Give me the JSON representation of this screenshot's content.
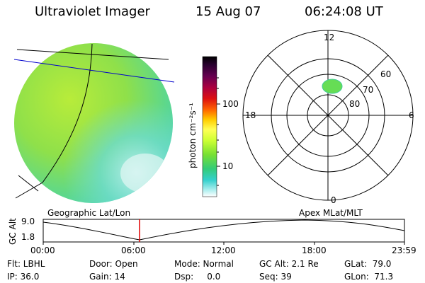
{
  "header": {
    "instrument": "Ultraviolet Imager",
    "date": "15 Aug 07",
    "time": "06:24:08 UT"
  },
  "colorbar": {
    "unit_label": "photon cm⁻²s⁻¹",
    "ticks": [
      "100",
      "10"
    ],
    "colors": [
      "#000000",
      "#330033",
      "#66004c",
      "#990033",
      "#cc0000",
      "#ff3300",
      "#ff8800",
      "#ffcc00",
      "#ffff66",
      "#ccff33",
      "#99ee22",
      "#44dd44",
      "#33cc99",
      "#33cccc",
      "#99eeee",
      "#ffffff"
    ]
  },
  "polar": {
    "mlt_labels": {
      "top": "12",
      "left": "18",
      "right": "6",
      "bottom": "0"
    },
    "lat_labels": [
      "60",
      "70",
      "80"
    ]
  },
  "timeline": {
    "left_label": "Geographic Lat/Lon",
    "right_label": "Apex MLat/MLT",
    "y_axis_label": "GC Alt",
    "y_max": "9.0",
    "y_min": "1.8",
    "x_ticks": [
      "00:00",
      "06:00",
      "12:00",
      "18:00",
      "23:59"
    ],
    "current_time_hours": 6.4
  },
  "info": {
    "flt": "Flt: LBHL",
    "ip": "IP: 36.0",
    "door": "Door: Open",
    "gain": "Gain: 14",
    "mode": "Mode: Normal",
    "dsp": "Dsp:     0.0",
    "gcalt": "GC Alt: 2.1 Re",
    "seq": "Seq: 39",
    "glat": "GLat:  79.0",
    "glon": "GLon:  71.3"
  },
  "colors": {
    "image_green": "#8fe04a",
    "image_cyan": "#4fd6b8",
    "current_time_marker": "#e00000",
    "lat_line": "#0000cc"
  }
}
